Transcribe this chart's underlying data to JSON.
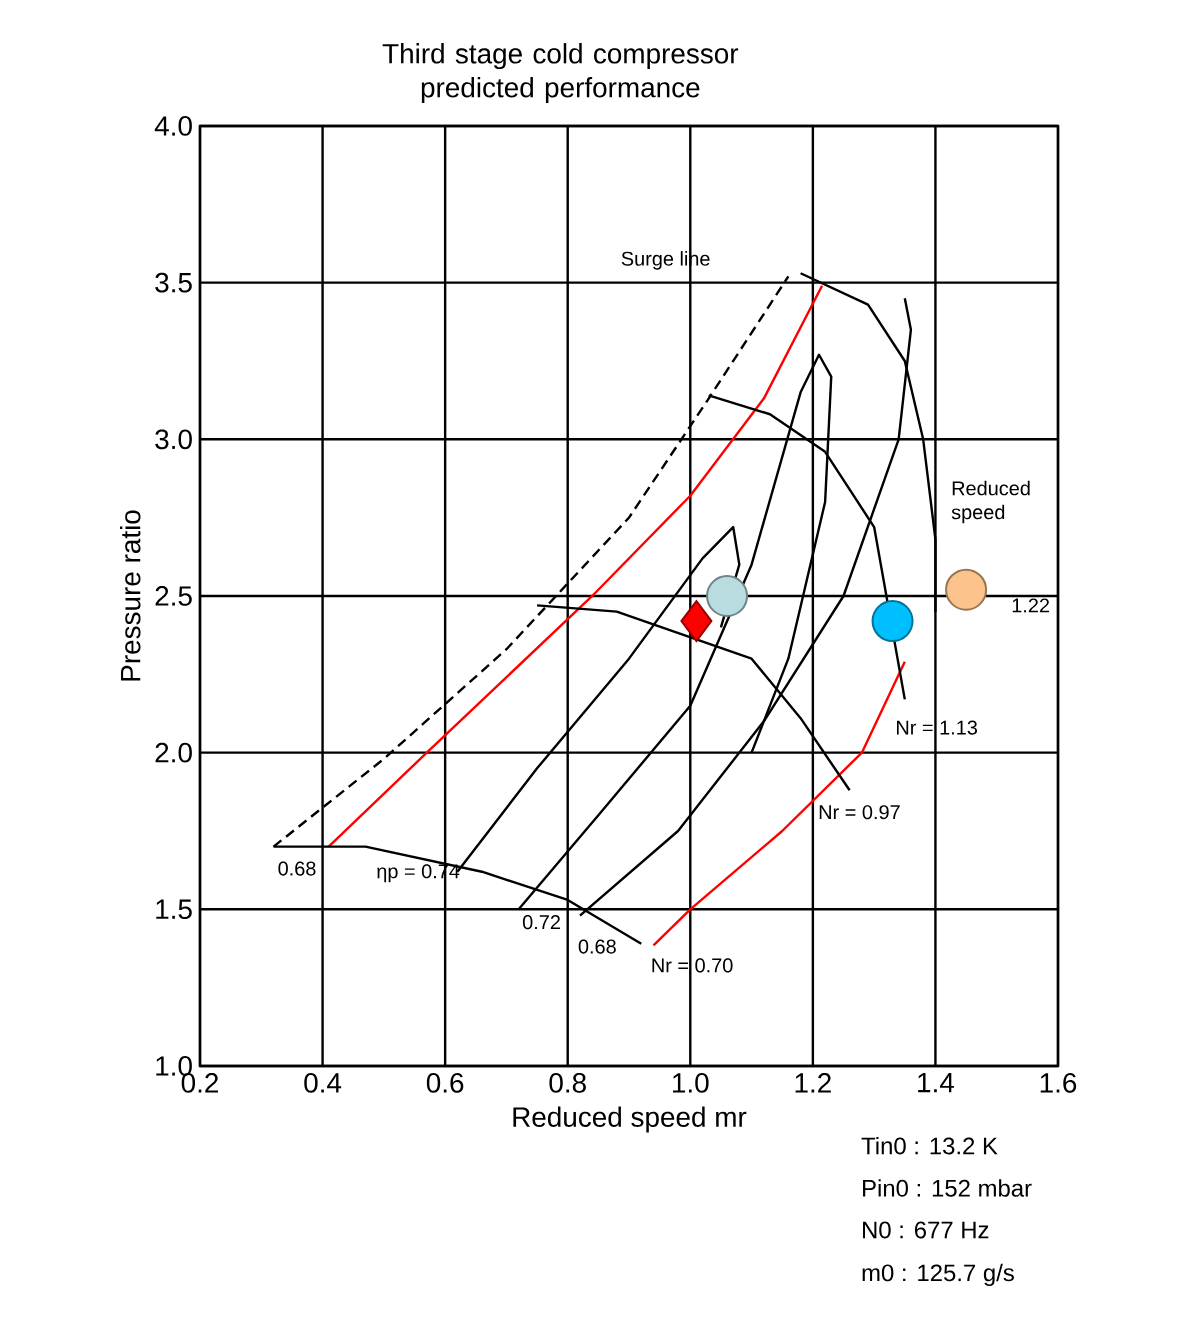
{
  "chart_data": {
    "type": "line",
    "title": "Third stage cold compressor predicted performance",
    "xlabel": "Reduced speed mr",
    "ylabel": "Pressure ratio",
    "xlim": [
      0.2,
      1.6
    ],
    "ylim": [
      1.0,
      4.0
    ],
    "xticks": [
      0.2,
      0.4,
      0.6,
      0.8,
      {
        "value": 1.0,
        "label": "1.0"
      },
      1.2,
      1.4,
      1.6
    ],
    "yticks": [
      {
        "value": 1.0,
        "label": "1.0"
      },
      1.5,
      {
        "value": 2.0,
        "label": "2.0"
      },
      2.5,
      {
        "value": 3.0,
        "label": "3.0"
      },
      3.5,
      {
        "value": 4.0,
        "label": "4.0"
      }
    ],
    "grid": true,
    "marker": "none",
    "series": [
      {
        "color": "#000000",
        "line_style": "dashed",
        "x": [
          0.32,
          0.5,
          0.7,
          0.9,
          1.03,
          1.16
        ],
        "values": [
          1.7,
          1.98,
          2.33,
          2.75,
          3.13,
          3.52
        ]
      },
      {
        "color": "#ff0000",
        "x": [
          0.41,
          0.57,
          0.84,
          1.0,
          1.12,
          1.215
        ],
        "values": [
          1.7,
          2.0,
          2.5,
          2.82,
          3.13,
          3.49
        ]
      },
      {
        "color": "#ff0000",
        "x": [
          0.94,
          1.0,
          1.15,
          1.28,
          1.35
        ],
        "values": [
          1.385,
          1.5,
          1.75,
          2.0,
          2.29
        ]
      },
      {
        "color": "#000000",
        "x": [
          0.32,
          0.47,
          0.66,
          0.8,
          0.92
        ],
        "values": [
          1.7,
          1.7,
          1.62,
          1.53,
          1.39
        ]
      },
      {
        "color": "#000000",
        "x": [
          0.75,
          0.88,
          1.1,
          1.18,
          1.26
        ],
        "values": [
          2.47,
          2.45,
          2.3,
          2.11,
          1.88
        ]
      },
      {
        "color": "#000000",
        "x": [
          1.03,
          1.13,
          1.22,
          1.3,
          1.35
        ],
        "values": [
          3.14,
          3.08,
          2.96,
          2.72,
          2.17
        ]
      },
      {
        "color": "#000000",
        "x": [
          1.18,
          1.29,
          1.35,
          1.38,
          1.4,
          1.4
        ],
        "values": [
          3.53,
          3.43,
          3.25,
          3.0,
          2.68,
          2.45
        ]
      },
      {
        "color": "#000000",
        "x": [
          0.62,
          0.75,
          0.9,
          1.02,
          1.07,
          1.08,
          1.05
        ],
        "values": [
          1.62,
          1.95,
          2.3,
          2.62,
          2.72,
          2.6,
          2.4
        ]
      },
      {
        "color": "#000000",
        "x": [
          0.72,
          0.85,
          1.0,
          1.1,
          1.18,
          1.21,
          1.23,
          1.22,
          1.16,
          1.1
        ],
        "values": [
          1.5,
          1.8,
          2.15,
          2.6,
          3.15,
          3.27,
          3.2,
          2.8,
          2.3,
          2.0
        ]
      },
      {
        "color": "#000000",
        "x": [
          0.82,
          0.98,
          1.12,
          1.25,
          1.34,
          1.36,
          1.35
        ],
        "values": [
          1.48,
          1.75,
          2.1,
          2.5,
          3.0,
          3.35,
          3.45
        ]
      },
      {
        "type": "scatter",
        "marker": "diamond",
        "color": "#ff0000",
        "x": [
          1.01
        ],
        "values": [
          2.42
        ]
      },
      {
        "type": "scatter",
        "marker": "circle",
        "color": "#b8dce0",
        "x": [
          1.06
        ],
        "values": [
          2.5
        ]
      },
      {
        "type": "scatter",
        "marker": "circle",
        "color": "#00bfff",
        "x": [
          1.33
        ],
        "values": [
          2.42
        ]
      },
      {
        "type": "scatter",
        "marker": "circle",
        "color": "#fcc48c",
        "x": [
          1.45
        ],
        "values": [
          2.52
        ]
      }
    ],
    "annotations": [
      "Surge line",
      "Reduced speed",
      "1.22",
      "Nr = 1.13",
      "Nr = 0.97",
      "Nr = 0.70",
      "0.68",
      "ηp = 0.74",
      "0.72",
      "0.68",
      "Tin0 :  13.2  K",
      "Pin0 :  152 mbar",
      "N0  :  677  Hz",
      "m0  : 125.7 g/s"
    ]
  }
}
